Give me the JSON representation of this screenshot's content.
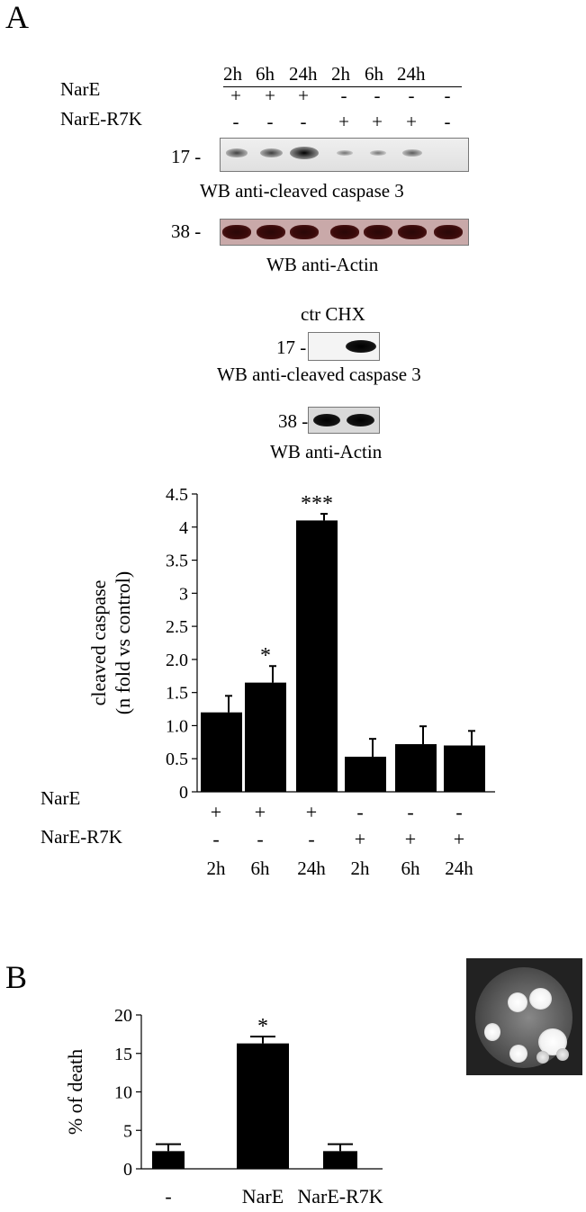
{
  "panelA": {
    "letter": "A",
    "blot": {
      "timepoints": [
        "2h",
        "6h",
        "24h",
        "2h",
        "6h",
        "24h"
      ],
      "row1_label": "NarE",
      "row1_signs": [
        "+",
        "+",
        "+",
        "-",
        "-",
        "-",
        "-"
      ],
      "row2_label": "NarE-R7K",
      "row2_signs": [
        "-",
        "-",
        "-",
        "+",
        "+",
        "+",
        "-"
      ],
      "marker17": "17",
      "marker38": "38",
      "caspase_caption": "WB anti-cleaved caspase 3",
      "actin_caption": "WB anti-Actin",
      "caspase_intensity": [
        0.45,
        0.5,
        1.0,
        0.05,
        0.05,
        0.25,
        0.0
      ]
    },
    "ctrl_blot": {
      "lane_labels": "ctr CHX",
      "marker17": "17",
      "marker38": "38",
      "caspase_caption": "WB anti-cleaved caspase 3",
      "actin_caption": "WB anti-Actin"
    }
  },
  "panelB": {
    "letter": "B"
  },
  "chart_data": [
    {
      "type": "bar",
      "ylabel_line1": "cleaved caspase",
      "ylabel_line2": "(n fold vs control)",
      "ylim": [
        0,
        4.5
      ],
      "yticks": [
        "0",
        "0.5",
        "1.0",
        "1.5",
        "2.0",
        "2.5",
        "3",
        "3.5",
        "4",
        "4.5"
      ],
      "categories": [
        "2h",
        "6h",
        "24h",
        "2h",
        "6h",
        "24h"
      ],
      "values": [
        1.2,
        1.65,
        4.1,
        0.53,
        0.72,
        0.7
      ],
      "errors": [
        0.25,
        0.25,
        0.1,
        0.27,
        0.27,
        0.22
      ],
      "significance": [
        "",
        "*",
        "***",
        "",
        "",
        ""
      ],
      "row1_label": "NarE",
      "row1_signs": [
        "+",
        "+",
        "+",
        "-",
        "-",
        "-"
      ],
      "row2_label": "NarE-R7K",
      "row2_signs": [
        "-",
        "-",
        "-",
        "+",
        "+",
        "+"
      ],
      "bar_color": "#000000"
    },
    {
      "type": "bar",
      "ylabel": "% of death",
      "ylim": [
        0,
        20
      ],
      "yticks": [
        "0",
        "5",
        "10",
        "15",
        "20"
      ],
      "categories": [
        "-",
        "NarE",
        "NarE-R7K"
      ],
      "values": [
        2.3,
        16.3,
        2.3
      ],
      "errors": [
        0.9,
        0.9,
        0.9
      ],
      "significance": [
        "",
        "*",
        ""
      ],
      "bar_color": "#000000"
    }
  ]
}
